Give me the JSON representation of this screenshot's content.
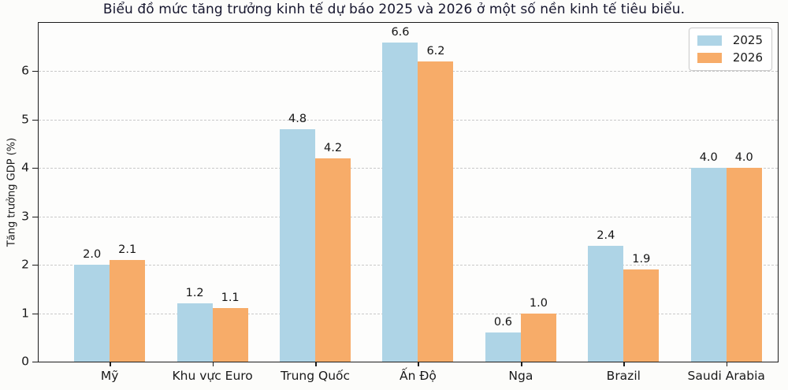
{
  "title": "Biểu đồ mức tăng trưởng kinh tế dự báo 2025 và 2026 ở một số nền kinh tế tiêu biểu.",
  "chart_data": {
    "type": "bar",
    "categories": [
      "Mỹ",
      "Khu vực Euro",
      "Trung Quốc",
      "Ấn Độ",
      "Nga",
      "Brazil",
      "Saudi Arabia"
    ],
    "series": [
      {
        "name": "2025",
        "color": "#AED4E6",
        "values": [
          2.0,
          1.2,
          4.8,
          6.6,
          0.6,
          2.4,
          4.0
        ]
      },
      {
        "name": "2026",
        "color": "#F7AC69",
        "values": [
          2.1,
          1.1,
          4.2,
          6.2,
          1.0,
          1.9,
          4.0
        ]
      }
    ],
    "title": "Biểu đồ mức tăng trưởng kinh tế dự báo 2025 và 2026 ở một số nền kinh tế tiêu biểu.",
    "xlabel": "",
    "ylabel": "Tăng trưởng GDP (%)",
    "ylim": [
      0,
      7
    ],
    "yticks": [
      0,
      1,
      2,
      3,
      4,
      5,
      6
    ],
    "grid": "horizontal-dashed",
    "legend_position": "upper-right",
    "value_labels": true,
    "value_label_format": "one-decimal",
    "colors": {
      "axis": "#1c1c1c",
      "gridline": "#c9c9c9",
      "title_text": "#16162e"
    }
  }
}
